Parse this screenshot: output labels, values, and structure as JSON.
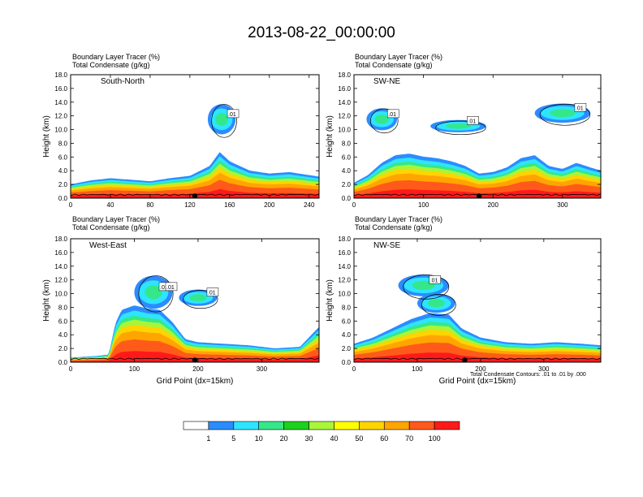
{
  "title": "2013-08-22_00:00:00",
  "contour_note": "Total Condensate Contours: .01 to .01 by .000",
  "colors": {
    "fill_levels": [
      "#ffffff",
      "#2b8cff",
      "#2ee4ff",
      "#34e889",
      "#1bd11b",
      "#a8f53a",
      "#ffff00",
      "#ffd400",
      "#ffa500",
      "#ff5a1a",
      "#ff1a1a"
    ],
    "contour": "#000000"
  },
  "colorbar": {
    "labels": [
      "1",
      "5",
      "10",
      "20",
      "30",
      "40",
      "50",
      "60",
      "70",
      "100"
    ]
  },
  "chart_data": [
    {
      "type": "heatmap",
      "panel": "South-North",
      "header": [
        "Boundary Layer Tracer   (%)",
        "Total Condensate   (g/kg)"
      ],
      "ylabel": "Height (km)",
      "xlabel": "",
      "xlim": [
        0,
        250
      ],
      "ylim": [
        0,
        18
      ],
      "xticks": [
        "0",
        "40",
        "80",
        "120",
        "160",
        "200",
        "240"
      ],
      "yticks": [
        "0.0",
        "2.0",
        "4.0",
        "6.0",
        "8.0",
        "10.0",
        "12.0",
        "14.0",
        "16.0",
        "18.0"
      ],
      "contour_labels": [
        ".01"
      ],
      "marker_x": 125,
      "boundary_layer_top_km": [
        [
          0,
          1.8
        ],
        [
          20,
          2.3
        ],
        [
          40,
          2.6
        ],
        [
          60,
          2.4
        ],
        [
          80,
          2.2
        ],
        [
          100,
          2.6
        ],
        [
          120,
          2.9
        ],
        [
          140,
          4.2
        ],
        [
          150,
          6.0
        ],
        [
          160,
          4.8
        ],
        [
          180,
          3.6
        ],
        [
          200,
          3.2
        ],
        [
          220,
          3.4
        ],
        [
          240,
          3.0
        ],
        [
          250,
          2.8
        ]
      ]
    },
    {
      "type": "heatmap",
      "panel": "SW-NE",
      "header": [
        "Boundary Layer Tracer   (%)",
        "Total Condensate   (g/kg)"
      ],
      "ylabel": "Height (km)",
      "xlabel": "",
      "xlim": [
        0,
        355
      ],
      "ylim": [
        0,
        18
      ],
      "xticks": [
        "0",
        "100",
        "200",
        "300"
      ],
      "yticks": [
        "0.0",
        "2.0",
        "4.0",
        "6.0",
        "8.0",
        "10.0",
        "12.0",
        "14.0",
        "16.0",
        "18.0"
      ],
      "contour_labels": [
        ".01",
        ".01",
        ".01"
      ],
      "marker_x": 180,
      "boundary_layer_top_km": [
        [
          0,
          2.0
        ],
        [
          20,
          3.0
        ],
        [
          40,
          4.6
        ],
        [
          60,
          5.6
        ],
        [
          80,
          5.8
        ],
        [
          100,
          5.4
        ],
        [
          120,
          5.2
        ],
        [
          140,
          4.8
        ],
        [
          160,
          4.2
        ],
        [
          180,
          3.2
        ],
        [
          200,
          3.4
        ],
        [
          220,
          4.0
        ],
        [
          240,
          5.2
        ],
        [
          260,
          5.6
        ],
        [
          280,
          4.2
        ],
        [
          300,
          3.8
        ],
        [
          320,
          4.6
        ],
        [
          340,
          4.0
        ],
        [
          355,
          3.6
        ]
      ]
    },
    {
      "type": "heatmap",
      "panel": "West-East",
      "header": [
        "Boundary Layer Tracer   (%)",
        "Total Condensate   (g/kg)"
      ],
      "ylabel": "Height (km)",
      "xlabel": "Grid Point (dx=15km)",
      "xlim": [
        0,
        390
      ],
      "ylim": [
        0,
        18
      ],
      "xticks": [
        "0",
        "100",
        "200",
        "300"
      ],
      "yticks": [
        "0.0",
        "2.0",
        "4.0",
        "6.0",
        "8.0",
        "10.0",
        "12.0",
        "14.0",
        "16.0",
        "18.0"
      ],
      "contour_labels": [
        ".01",
        ".01",
        ".01"
      ],
      "marker_x": 195,
      "boundary_layer_top_km": [
        [
          0,
          0.6
        ],
        [
          40,
          0.8
        ],
        [
          60,
          1.0
        ],
        [
          70,
          5.0
        ],
        [
          80,
          6.8
        ],
        [
          100,
          7.4
        ],
        [
          120,
          7.0
        ],
        [
          140,
          6.8
        ],
        [
          160,
          5.2
        ],
        [
          180,
          3.0
        ],
        [
          200,
          2.6
        ],
        [
          240,
          2.4
        ],
        [
          280,
          2.2
        ],
        [
          320,
          1.8
        ],
        [
          360,
          2.0
        ],
        [
          390,
          4.6
        ]
      ]
    },
    {
      "type": "heatmap",
      "panel": "NW-SE",
      "header": [
        "Boundary Layer Tracer   (%)",
        "Total Condensate   (g/kg)"
      ],
      "ylabel": "Height (km)",
      "xlabel": "Grid Point (dx=15km)",
      "xlim": [
        0,
        390
      ],
      "ylim": [
        0,
        18
      ],
      "xticks": [
        "0",
        "100",
        "200",
        "300"
      ],
      "yticks": [
        "0.0",
        "2.0",
        "4.0",
        "6.0",
        "8.0",
        "10.0",
        "12.0",
        "14.0",
        "16.0",
        "18.0"
      ],
      "contour_labels": [
        ".01"
      ],
      "marker_x": 175,
      "boundary_layer_top_km": [
        [
          0,
          2.4
        ],
        [
          30,
          3.2
        ],
        [
          60,
          4.4
        ],
        [
          90,
          5.6
        ],
        [
          120,
          6.4
        ],
        [
          150,
          6.2
        ],
        [
          170,
          4.4
        ],
        [
          200,
          3.2
        ],
        [
          240,
          2.6
        ],
        [
          280,
          2.4
        ],
        [
          320,
          2.6
        ],
        [
          360,
          2.4
        ],
        [
          390,
          2.2
        ]
      ]
    }
  ]
}
